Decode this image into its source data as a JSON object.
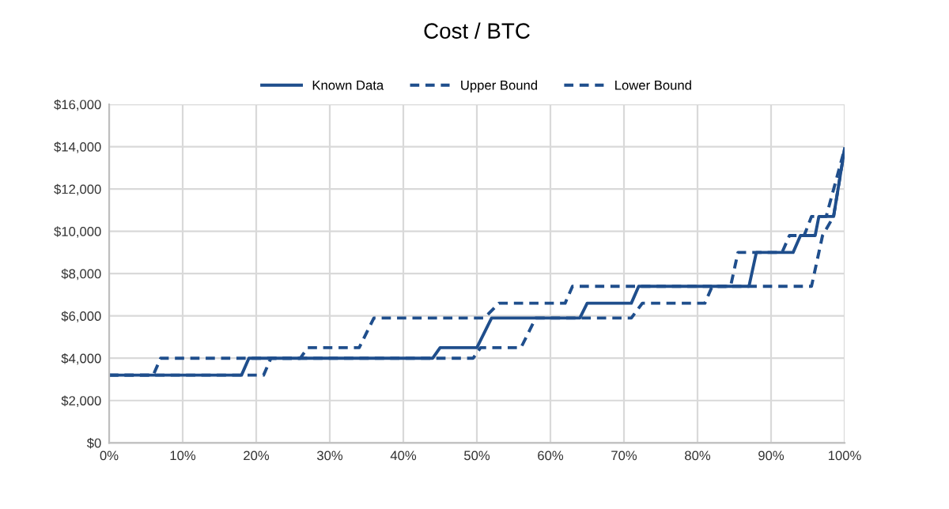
{
  "chart_data": {
    "type": "line",
    "title": "Cost / BTC",
    "legend": "top",
    "grid": true,
    "xlim": [
      0,
      100
    ],
    "xticks": [
      {
        "value": 0,
        "label": "0%"
      },
      {
        "value": 10,
        "label": "10%"
      },
      {
        "value": 20,
        "label": "20%"
      },
      {
        "value": 30,
        "label": "30%"
      },
      {
        "value": 40,
        "label": "40%"
      },
      {
        "value": 50,
        "label": "50%"
      },
      {
        "value": 60,
        "label": "60%"
      },
      {
        "value": 70,
        "label": "70%"
      },
      {
        "value": 80,
        "label": "80%"
      },
      {
        "value": 90,
        "label": "90%"
      },
      {
        "value": 100,
        "label": "100%"
      }
    ],
    "ylim": [
      0,
      16000
    ],
    "yticks": [
      {
        "value": 0,
        "label": "$0"
      },
      {
        "value": 2000,
        "label": "$2,000"
      },
      {
        "value": 4000,
        "label": "$4,000"
      },
      {
        "value": 6000,
        "label": "$6,000"
      },
      {
        "value": 8000,
        "label": "$8,000"
      },
      {
        "value": 10000,
        "label": "$10,000"
      },
      {
        "value": 12000,
        "label": "$12,000"
      },
      {
        "value": 14000,
        "label": "$14,000"
      },
      {
        "value": 16000,
        "label": "$16,000"
      }
    ],
    "series": [
      {
        "name": "Known Data",
        "color": "#1f4e8c",
        "line_style": "solid",
        "x": [
          0,
          18,
          19,
          44,
          45,
          50,
          52,
          64,
          65,
          71,
          72,
          87,
          88,
          93,
          94,
          96,
          96.5,
          98.5,
          100
        ],
        "values": [
          3200,
          3200,
          4000,
          4000,
          4500,
          4500,
          5900,
          5900,
          6600,
          6600,
          7400,
          7400,
          9000,
          9000,
          9800,
          9800,
          10700,
          10700,
          13900
        ]
      },
      {
        "name": "Upper Bound",
        "color": "#1f4e8c",
        "line_style": "dashed",
        "x": [
          0,
          6,
          7,
          26,
          27,
          34,
          36,
          51,
          53,
          62,
          63,
          84.5,
          85.5,
          91.5,
          92.5,
          94.5,
          95.5,
          97.5,
          100
        ],
        "values": [
          3200,
          3200,
          4000,
          4000,
          4500,
          4500,
          5900,
          5900,
          6600,
          6600,
          7400,
          7400,
          9000,
          9000,
          9800,
          9800,
          10700,
          10700,
          13900
        ]
      },
      {
        "name": "Lower Bound",
        "color": "#1f4e8c",
        "line_style": "dashed",
        "x": [
          0,
          21,
          22,
          49.5,
          50.5,
          56,
          58,
          71,
          72.5,
          81,
          82,
          95.5,
          97,
          98.5,
          100
        ],
        "values": [
          3200,
          3200,
          4000,
          4000,
          4500,
          4500,
          5900,
          5900,
          6600,
          6600,
          7400,
          7400,
          9800,
          10700,
          13900
        ]
      }
    ]
  }
}
